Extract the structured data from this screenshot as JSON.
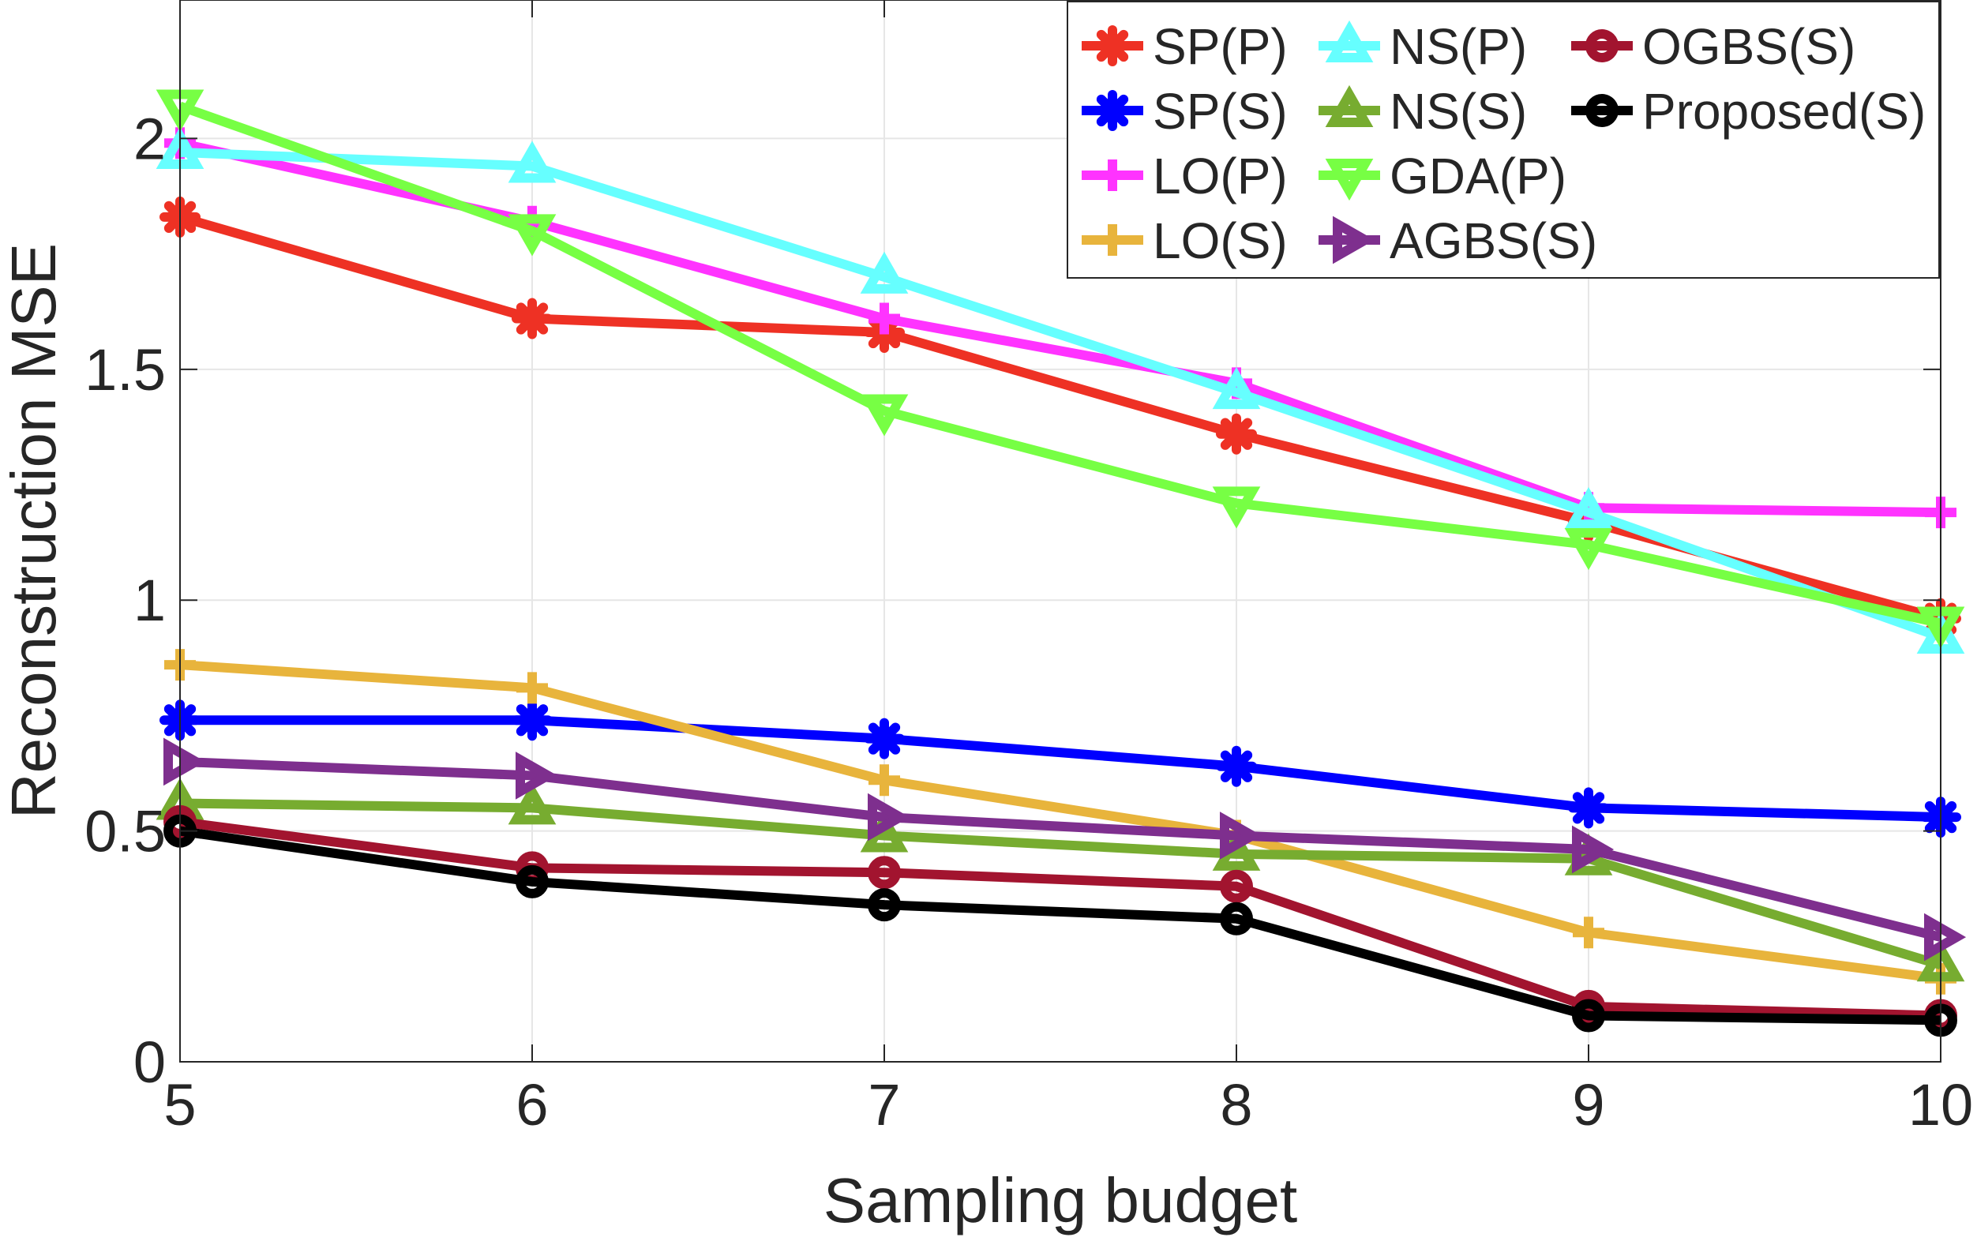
{
  "chart_data": {
    "type": "line",
    "title": "",
    "xlabel": "Sampling budget",
    "ylabel": "Reconstruction MSE",
    "x": [
      5,
      6,
      7,
      8,
      9,
      10
    ],
    "xlim": [
      5,
      10
    ],
    "ylim": [
      0,
      2.3
    ],
    "xticks": [
      "5",
      "6",
      "7",
      "8",
      "9",
      "10"
    ],
    "yticks": [
      {
        "value": 0,
        "label": "0"
      },
      {
        "value": 0.5,
        "label": "0.5"
      },
      {
        "value": 1,
        "label": "1"
      },
      {
        "value": 1.5,
        "label": "1.5"
      },
      {
        "value": 2,
        "label": "2"
      }
    ],
    "grid": true,
    "legend_position": "top-right",
    "series": [
      {
        "name": "SP(P)",
        "color": "#ee3124",
        "marker": "asterisk",
        "values": [
          1.83,
          1.61,
          1.58,
          1.36,
          1.17,
          0.96
        ]
      },
      {
        "name": "SP(S)",
        "color": "#0000ff",
        "marker": "asterisk",
        "values": [
          0.74,
          0.74,
          0.7,
          0.64,
          0.55,
          0.53
        ]
      },
      {
        "name": "LO(P)",
        "color": "#ff33ff",
        "marker": "plus",
        "values": [
          1.99,
          1.82,
          1.61,
          1.47,
          1.2,
          1.19
        ]
      },
      {
        "name": "LO(S)",
        "color": "#e8b43c",
        "marker": "plus",
        "values": [
          0.86,
          0.81,
          0.61,
          0.49,
          0.28,
          0.18
        ]
      },
      {
        "name": "NS(P)",
        "color": "#66ffff",
        "marker": "triangle-up",
        "values": [
          1.97,
          1.94,
          1.7,
          1.45,
          1.19,
          0.92
        ]
      },
      {
        "name": "NS(S)",
        "color": "#77ac30",
        "marker": "triangle-up",
        "values": [
          0.56,
          0.55,
          0.49,
          0.45,
          0.44,
          0.21
        ]
      },
      {
        "name": "GDA(P)",
        "color": "#77ff44",
        "marker": "triangle-down",
        "values": [
          2.07,
          1.8,
          1.41,
          1.21,
          1.12,
          0.95
        ]
      },
      {
        "name": "AGBS(S)",
        "color": "#7e2f8e",
        "marker": "triangle-right",
        "values": [
          0.65,
          0.62,
          0.53,
          0.49,
          0.46,
          0.27
        ]
      },
      {
        "name": "OGBS(S)",
        "color": "#a2142f",
        "marker": "circle",
        "values": [
          0.52,
          0.42,
          0.41,
          0.38,
          0.12,
          0.1
        ]
      },
      {
        "name": "Proposed(S)",
        "color": "#000000",
        "marker": "circle",
        "values": [
          0.5,
          0.39,
          0.34,
          0.31,
          0.1,
          0.09
        ]
      }
    ]
  }
}
